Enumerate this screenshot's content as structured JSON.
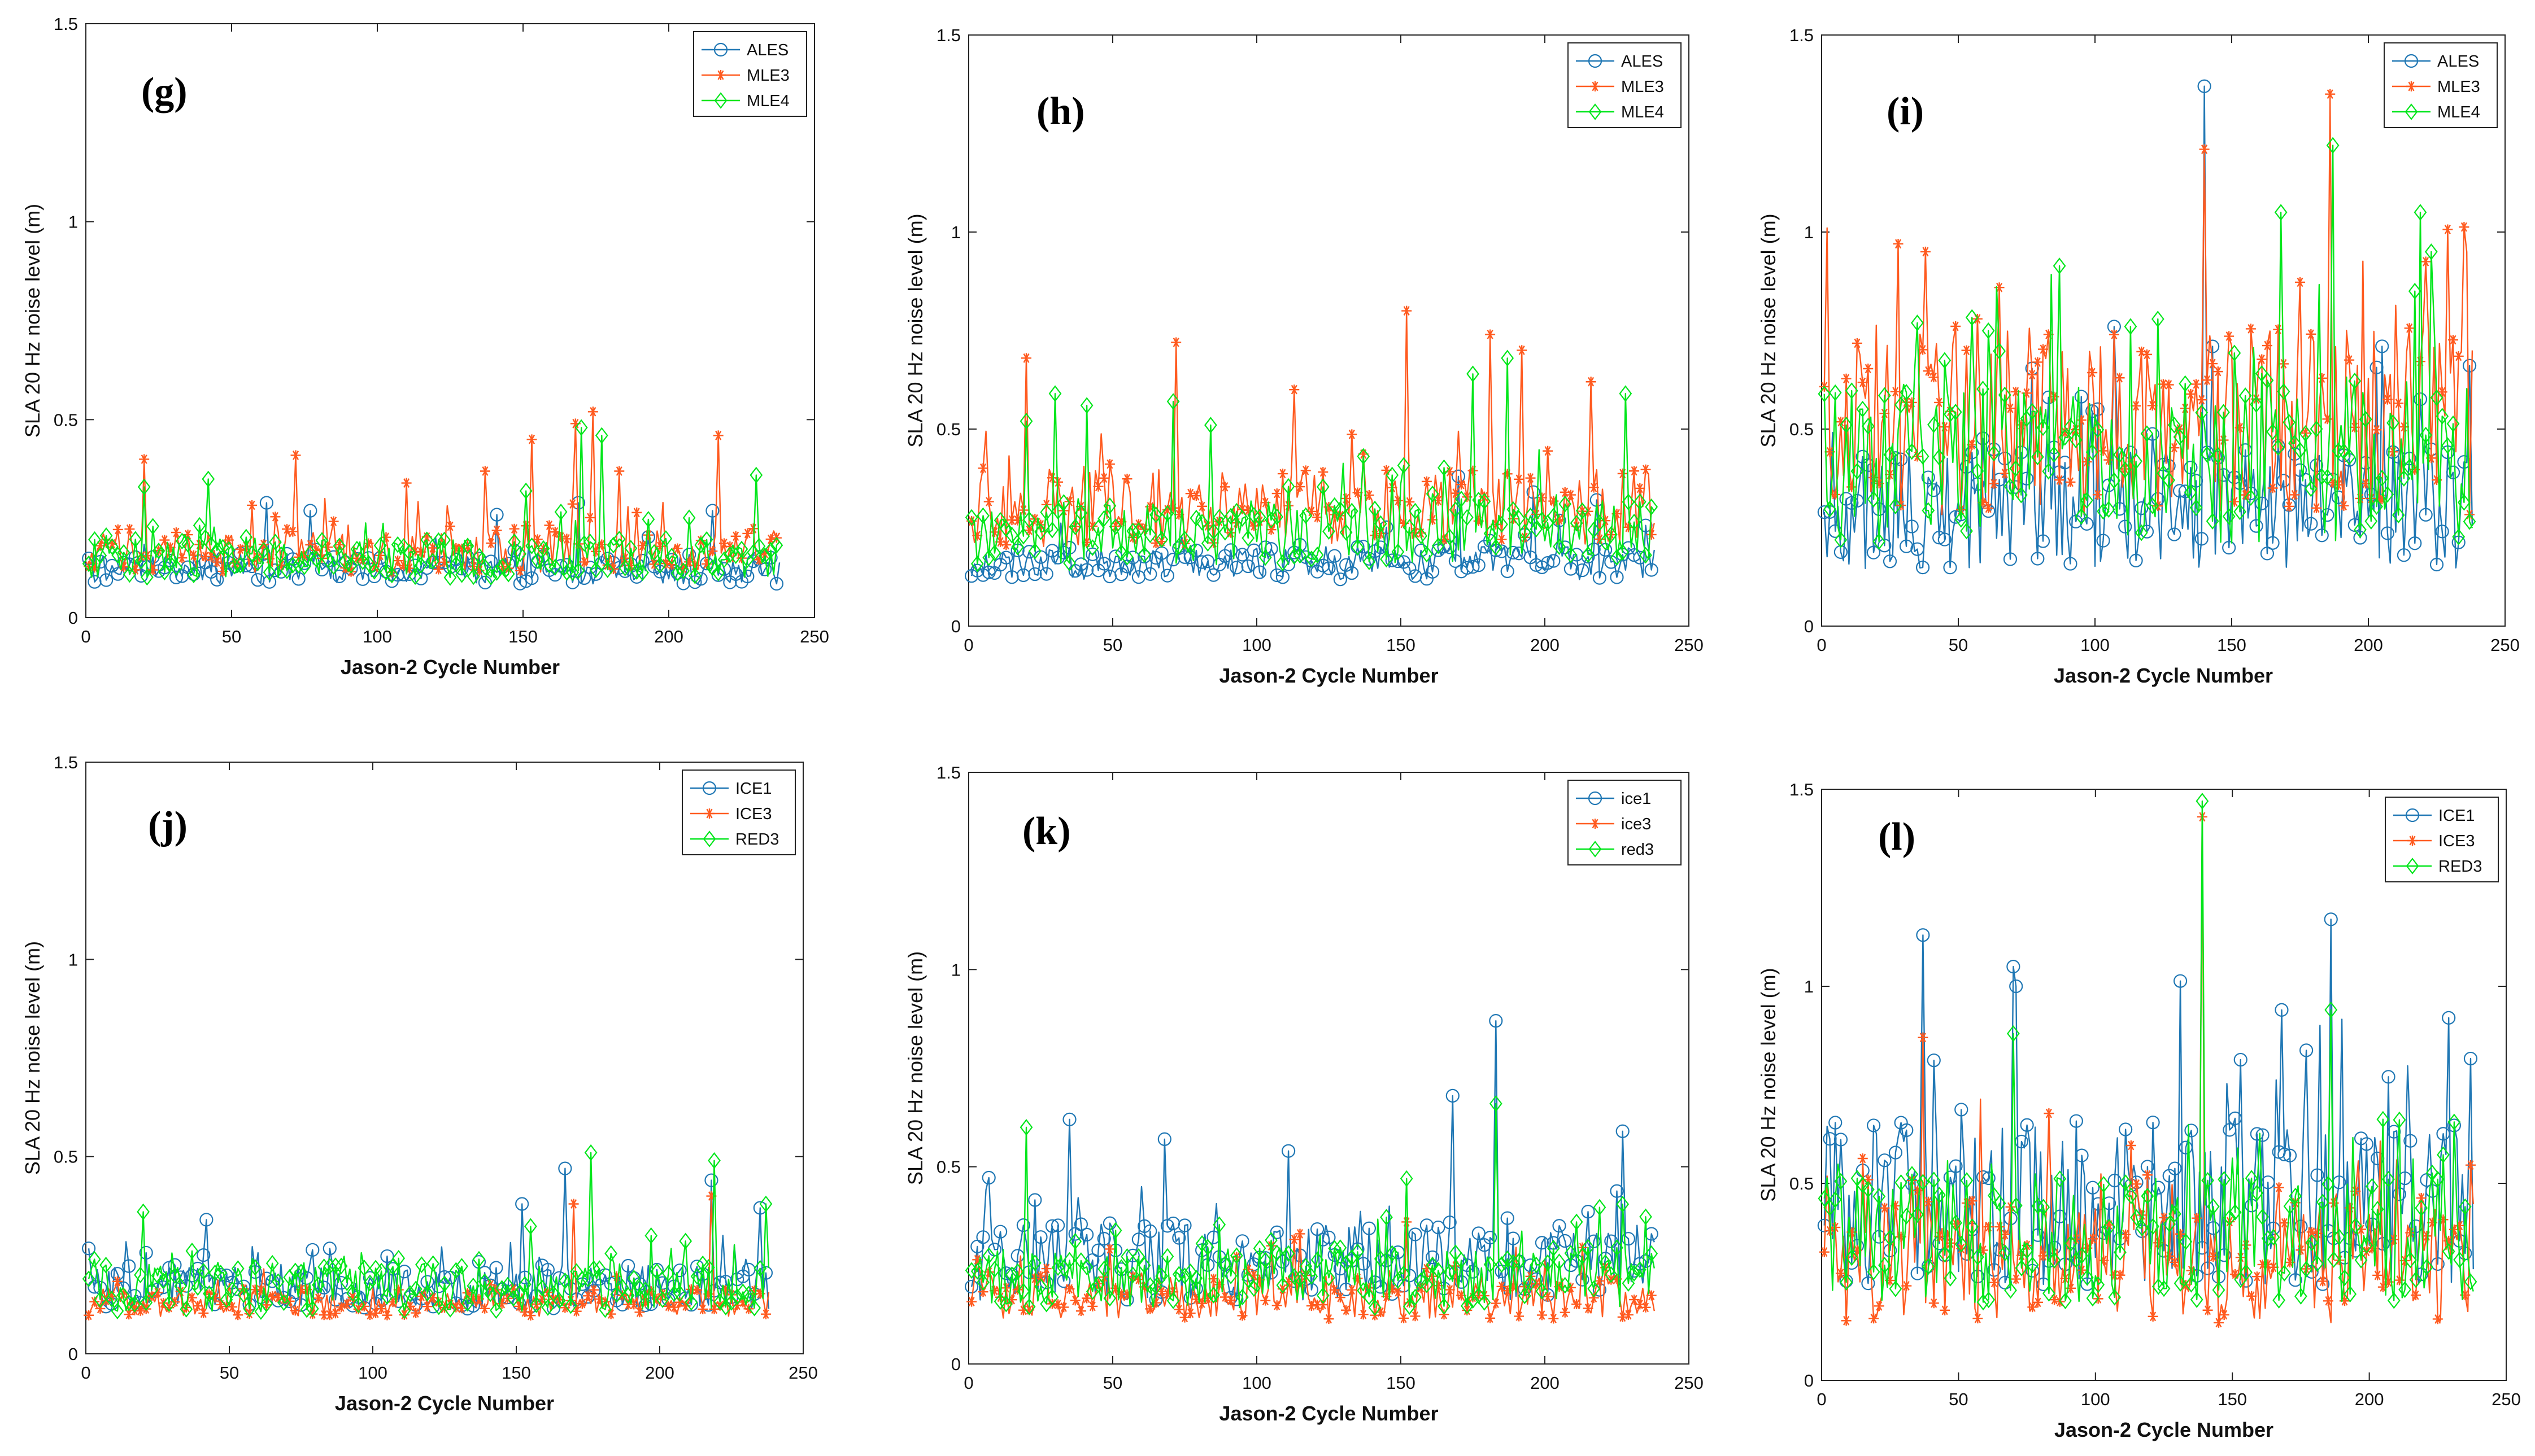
{
  "colors": {
    "blue": "#1f77b4",
    "orange": "#ff5a1f",
    "green": "#00e61a"
  },
  "axis_common": {
    "xlabel": "Jason-2 Cycle Number",
    "ylabel": "SLA 20 Hz noise level (m)",
    "x_ticks": [
      "0",
      "50",
      "100",
      "150",
      "200",
      "250"
    ],
    "y_ticks": [
      "0",
      "0.5",
      "1",
      "1.5"
    ]
  },
  "chart_data": [
    {
      "id": "g",
      "letter": "(g)",
      "type": "line",
      "title": "",
      "xlabel": "Jason-2 Cycle Number",
      "ylabel": "SLA 20 Hz noise level (m)",
      "xlim": [
        0,
        250
      ],
      "ylim": [
        0,
        1.5
      ],
      "legend_position": "top-right",
      "series": [
        {
          "name": "ALES",
          "color": "#1f77b4",
          "marker": "circle",
          "base": 0.12,
          "amp": 0.05,
          "seed": 11,
          "spikes": [
            [
              62,
              0.29
            ],
            [
              77,
              0.27
            ],
            [
              141,
              0.26
            ],
            [
              169,
              0.29
            ],
            [
              215,
              0.27
            ]
          ]
        },
        {
          "name": "MLE3",
          "color": "#ff5a1f",
          "marker": "star",
          "base": 0.17,
          "amp": 0.08,
          "seed": 12,
          "spikes": [
            [
              20,
              0.4
            ],
            [
              72,
              0.41
            ],
            [
              110,
              0.34
            ],
            [
              137,
              0.37
            ],
            [
              153,
              0.45
            ],
            [
              168,
              0.49
            ],
            [
              174,
              0.52
            ],
            [
              183,
              0.37
            ],
            [
              217,
              0.46
            ]
          ]
        },
        {
          "name": "MLE4",
          "color": "#00e61a",
          "marker": "diamond",
          "base": 0.15,
          "amp": 0.07,
          "seed": 13,
          "spikes": [
            [
              20,
              0.33
            ],
            [
              42,
              0.35
            ],
            [
              151,
              0.32
            ],
            [
              170,
              0.48
            ],
            [
              177,
              0.46
            ],
            [
              230,
              0.36
            ]
          ]
        }
      ]
    },
    {
      "id": "h",
      "letter": "(h)",
      "type": "line",
      "title": "",
      "xlabel": "Jason-2 Cycle Number",
      "ylabel": "SLA 20 Hz noise level (m)",
      "xlim": [
        0,
        250
      ],
      "ylim": [
        0,
        1.5
      ],
      "legend_position": "top-right",
      "series": [
        {
          "name": "ALES",
          "color": "#1f77b4",
          "marker": "circle",
          "base": 0.16,
          "amp": 0.06,
          "seed": 21,
          "spikes": [
            [
              170,
              0.38
            ],
            [
              196,
              0.34
            ],
            [
              218,
              0.32
            ]
          ]
        },
        {
          "name": "MLE3",
          "color": "#ff5a1f",
          "marker": "star",
          "base": 0.3,
          "amp": 0.14,
          "seed": 22,
          "spikes": [
            [
              20,
              0.68
            ],
            [
              72,
              0.72
            ],
            [
              113,
              0.6
            ],
            [
              152,
              0.8
            ],
            [
              181,
              0.74
            ],
            [
              192,
              0.7
            ],
            [
              216,
              0.62
            ]
          ]
        },
        {
          "name": "MLE4",
          "color": "#00e61a",
          "marker": "diamond",
          "base": 0.24,
          "amp": 0.12,
          "seed": 23,
          "spikes": [
            [
              20,
              0.52
            ],
            [
              30,
              0.59
            ],
            [
              41,
              0.56
            ],
            [
              71,
              0.57
            ],
            [
              84,
              0.51
            ],
            [
              175,
              0.64
            ],
            [
              187,
              0.68
            ],
            [
              228,
              0.59
            ]
          ]
        }
      ]
    },
    {
      "id": "i",
      "letter": "(i)",
      "type": "line",
      "title": "",
      "xlabel": "Jason-2 Cycle Number",
      "ylabel": "SLA 20 Hz noise level (m)",
      "xlim": [
        0,
        250
      ],
      "ylim": [
        0,
        1.5
      ],
      "legend_position": "top-right",
      "series": [
        {
          "name": "ALES",
          "color": "#1f77b4",
          "marker": "circle",
          "base": 0.3,
          "amp": 0.22,
          "seed": 31,
          "spikes": [
            [
              140,
              1.37
            ],
            [
              107,
              0.76
            ],
            [
              205,
              0.71
            ]
          ]
        },
        {
          "name": "MLE3",
          "color": "#ff5a1f",
          "marker": "star",
          "base": 0.52,
          "amp": 0.34,
          "seed": 32,
          "spikes": [
            [
              140,
              1.21
            ],
            [
              186,
              1.35
            ],
            [
              28,
              0.97
            ],
            [
              38,
              0.95
            ]
          ]
        },
        {
          "name": "MLE4",
          "color": "#00e61a",
          "marker": "diamond",
          "base": 0.42,
          "amp": 0.3,
          "seed": 33,
          "spikes": [
            [
              187,
              1.22
            ],
            [
              168,
              1.05
            ],
            [
              219,
              1.05
            ],
            [
              223,
              0.95
            ]
          ]
        }
      ]
    },
    {
      "id": "j",
      "letter": "(j)",
      "type": "line",
      "title": "",
      "xlabel": "Jason-2 Cycle Number",
      "ylabel": "SLA 20 Hz noise level (m)",
      "xlim": [
        0,
        250
      ],
      "ylim": [
        0,
        1.5
      ],
      "legend_position": "top-right",
      "series": [
        {
          "name": "ICE1",
          "color": "#1f77b4",
          "marker": "circle",
          "base": 0.17,
          "amp": 0.08,
          "seed": 41,
          "spikes": [
            [
              42,
              0.34
            ],
            [
              152,
              0.38
            ],
            [
              167,
              0.47
            ],
            [
              218,
              0.44
            ],
            [
              235,
              0.37
            ]
          ]
        },
        {
          "name": "ICE3",
          "color": "#ff5a1f",
          "marker": "star",
          "base": 0.13,
          "amp": 0.05,
          "seed": 42,
          "spikes": [
            [
              170,
              0.38
            ],
            [
              218,
              0.4
            ]
          ]
        },
        {
          "name": "RED3",
          "color": "#00e61a",
          "marker": "diamond",
          "base": 0.17,
          "amp": 0.09,
          "seed": 43,
          "spikes": [
            [
              20,
              0.36
            ],
            [
              176,
              0.51
            ],
            [
              219,
              0.49
            ],
            [
              237,
              0.38
            ]
          ]
        }
      ]
    },
    {
      "id": "k",
      "letter": "(k)",
      "type": "line",
      "title": "",
      "xlabel": "Jason-2 Cycle Number",
      "ylabel": "SLA 20 Hz noise level (m)",
      "xlim": [
        0,
        250
      ],
      "ylim": [
        0,
        1.5
      ],
      "legend_position": "top-right",
      "series": [
        {
          "name": "ice1",
          "color": "#1f77b4",
          "marker": "circle",
          "base": 0.26,
          "amp": 0.14,
          "seed": 51,
          "spikes": [
            [
              183,
              0.87
            ],
            [
              168,
              0.68
            ],
            [
              35,
              0.62
            ],
            [
              68,
              0.57
            ],
            [
              227,
              0.59
            ],
            [
              111,
              0.54
            ]
          ]
        },
        {
          "name": "ice3",
          "color": "#ff5a1f",
          "marker": "star",
          "base": 0.17,
          "amp": 0.08,
          "seed": 52,
          "spikes": [
            [
              115,
              0.33
            ],
            [
              152,
              0.36
            ]
          ]
        },
        {
          "name": "red3",
          "color": "#00e61a",
          "marker": "diamond",
          "base": 0.22,
          "amp": 0.11,
          "seed": 53,
          "spikes": [
            [
              20,
              0.6
            ],
            [
              183,
              0.66
            ],
            [
              152,
              0.47
            ]
          ]
        }
      ]
    },
    {
      "id": "l",
      "letter": "(l)",
      "type": "line",
      "title": "",
      "xlabel": "Jason-2 Cycle Number",
      "ylabel": "SLA 20 Hz noise level (m)",
      "xlim": [
        0,
        250
      ],
      "ylim": [
        0,
        1.5
      ],
      "legend_position": "top-right",
      "series": [
        {
          "name": "ICE1",
          "color": "#1f77b4",
          "marker": "circle",
          "base": 0.45,
          "amp": 0.3,
          "seed": 61,
          "spikes": [
            [
              37,
              1.13
            ],
            [
              70,
              1.05
            ],
            [
              186,
              1.17
            ],
            [
              229,
              0.92
            ],
            [
              168,
              0.94
            ]
          ]
        },
        {
          "name": "ICE3",
          "color": "#ff5a1f",
          "marker": "star",
          "base": 0.3,
          "amp": 0.22,
          "seed": 62,
          "spikes": [
            [
              139,
              1.43
            ],
            [
              37,
              0.87
            ]
          ]
        },
        {
          "name": "RED3",
          "color": "#00e61a",
          "marker": "diamond",
          "base": 0.36,
          "amp": 0.24,
          "seed": 63,
          "spikes": [
            [
              139,
              1.47
            ],
            [
              70,
              0.88
            ],
            [
              186,
              0.94
            ]
          ]
        }
      ]
    }
  ]
}
